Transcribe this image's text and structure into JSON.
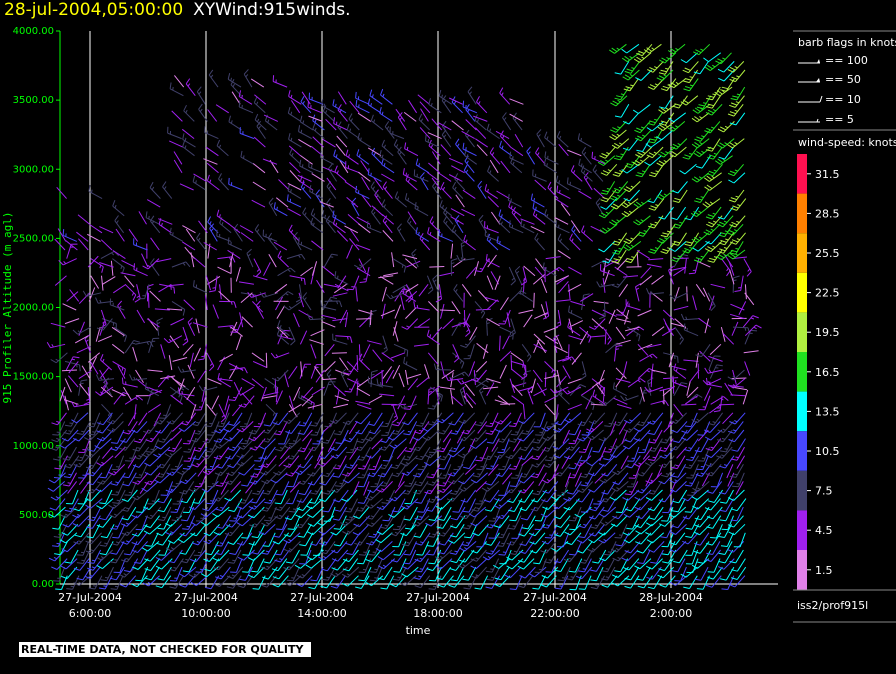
{
  "header": {
    "datetime": "28-jul-2004,05:00:00",
    "title": "XYWind:915winds."
  },
  "footer": {
    "warning": "REAL-TIME DATA, NOT CHECKED FOR QUALITY",
    "source": "iss2/prof915l"
  },
  "legend": {
    "flags_title": "barb flags in knots",
    "flags": [
      "== 100",
      "== 50",
      "== 10",
      "== 5"
    ],
    "colorbar_title": "wind-speed: knots",
    "bins": [
      {
        "label": "31.5",
        "color": "#ff1050"
      },
      {
        "label": "28.5",
        "color": "#ff8000"
      },
      {
        "label": "25.5",
        "color": "#ffb000"
      },
      {
        "label": "22.5",
        "color": "#ffff00"
      },
      {
        "label": "19.5",
        "color": "#b0f040"
      },
      {
        "label": "16.5",
        "color": "#20e020"
      },
      {
        "label": "13.5",
        "color": "#00ffff"
      },
      {
        "label": "10.5",
        "color": "#4848ff"
      },
      {
        "label": "7.5",
        "color": "#40406a"
      },
      {
        "label": "4.5",
        "color": "#a020f0"
      },
      {
        "label": "1.5",
        "color": "#e080e8"
      }
    ]
  },
  "chart_data": {
    "type": "scatter",
    "xlabel": "time",
    "ylabel": "915 Profiler Altitude (m agl)",
    "ylim": [
      0,
      4000
    ],
    "yticks": [
      "0.00",
      "500.00",
      "1000.00",
      "1500.00",
      "2000.00",
      "2500.00",
      "3000.00",
      "3500.00",
      "4000.00"
    ],
    "yticks_values": [
      0,
      500,
      1000,
      1500,
      2000,
      2500,
      3000,
      3500,
      4000
    ],
    "xticks": [
      {
        "date": "27-Jul-2004",
        "time": "6:00:00"
      },
      {
        "date": "27-Jul-2004",
        "time": "10:00:00"
      },
      {
        "date": "27-Jul-2004",
        "time": "14:00:00"
      },
      {
        "date": "27-Jul-2004",
        "time": "18:00:00"
      },
      {
        "date": "27-Jul-2004",
        "time": "22:00:00"
      },
      {
        "date": "28-Jul-2004",
        "time": "2:00:00"
      }
    ],
    "xlim": [
      "27-Jul-2004 4:00:00",
      "28-Jul-2004 5:00:00"
    ],
    "grid": "vertical lines at major time ticks",
    "series_note": "wind barbs at each profile time and range gate, colored by wind-speed (knots)"
  }
}
